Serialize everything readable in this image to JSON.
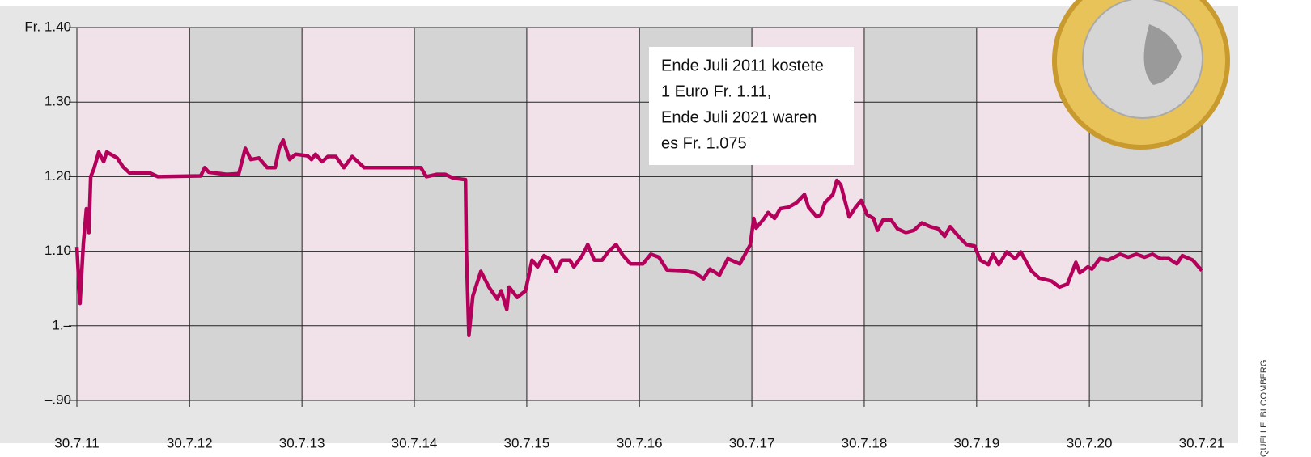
{
  "chart_data": {
    "type": "line",
    "annotation": [
      "Ende Juli 2011 kostete",
      "1 Euro Fr. 1.11,",
      "Ende Juli 2021 waren",
      "es Fr. 1.075"
    ],
    "source": "QUELLE: BLOOMBERG",
    "xlim": [
      "2011-07-30",
      "2021-07-30"
    ],
    "xticks": [
      {
        "value": "2011-07-30",
        "label": "30.7.11"
      },
      {
        "value": "2012-07-30",
        "label": "30.7.12"
      },
      {
        "value": "2013-07-30",
        "label": "30.7.13"
      },
      {
        "value": "2014-07-30",
        "label": "30.7.14"
      },
      {
        "value": "2015-07-30",
        "label": "30.7.15"
      },
      {
        "value": "2016-07-30",
        "label": "30.7.16"
      },
      {
        "value": "2017-07-30",
        "label": "30.7.17"
      },
      {
        "value": "2018-07-30",
        "label": "30.7.18"
      },
      {
        "value": "2019-07-30",
        "label": "30.7.19"
      },
      {
        "value": "2020-07-30",
        "label": "30.7.20"
      },
      {
        "value": "2021-07-30",
        "label": "30.7.21"
      }
    ],
    "ylim": [
      0.9,
      1.4
    ],
    "yticks": [
      {
        "value": 0.9,
        "label": "–.90"
      },
      {
        "value": 1.0,
        "label": "1.–"
      },
      {
        "value": 1.1,
        "label": "1.10"
      },
      {
        "value": 1.2,
        "label": "1.20"
      },
      {
        "value": 1.3,
        "label": "1.30"
      },
      {
        "value": 1.4,
        "label": "Fr. 1.40"
      }
    ],
    "grid": true,
    "band_colors": [
      "#f1e2ea",
      "#d4d4d4"
    ],
    "series": [
      {
        "color": "#b5005b",
        "x": [
          "2011-07-30",
          "2011-08-09",
          "2011-08-20",
          "2011-08-30",
          "2011-09-07",
          "2011-09-13",
          "2011-09-23",
          "2011-10-09",
          "2011-10-25",
          "2011-11-04",
          "2011-12-08",
          "2011-12-27",
          "2012-01-17",
          "2012-03-23",
          "2012-04-18",
          "2012-09-04",
          "2012-09-17",
          "2012-09-30",
          "2012-11-27",
          "2013-01-06",
          "2013-01-27",
          "2013-02-14",
          "2013-03-12",
          "2013-04-08",
          "2013-05-04",
          "2013-05-17",
          "2013-05-30",
          "2013-06-20",
          "2013-07-09",
          "2013-08-17",
          "2013-08-30",
          "2013-09-12",
          "2013-10-03",
          "2013-10-22",
          "2013-11-17",
          "2013-12-13",
          "2014-01-09",
          "2014-02-17",
          "2014-08-20",
          "2014-09-07",
          "2014-10-11",
          "2014-11-07",
          "2014-12-03",
          "2015-01-12",
          "2015-01-15",
          "2015-01-23",
          "2015-02-05",
          "2015-03-03",
          "2015-03-29",
          "2015-04-25",
          "2015-05-08",
          "2015-05-26",
          "2015-06-03",
          "2015-06-29",
          "2015-07-26",
          "2015-08-16",
          "2015-09-03",
          "2015-09-24",
          "2015-10-12",
          "2015-11-02",
          "2015-11-21",
          "2015-12-17",
          "2015-12-30",
          "2016-01-26",
          "2016-02-13",
          "2016-03-05",
          "2016-03-31",
          "2016-04-19",
          "2016-05-15",
          "2016-06-05",
          "2016-07-01",
          "2016-08-10",
          "2016-09-05",
          "2016-10-01",
          "2016-10-27",
          "2016-12-19",
          "2017-01-27",
          "2017-02-23",
          "2017-03-16",
          "2017-04-16",
          "2017-05-13",
          "2017-06-21",
          "2017-07-25",
          "2017-08-05",
          "2017-08-13",
          "2017-09-08",
          "2017-09-21",
          "2017-10-12",
          "2017-10-30",
          "2017-11-26",
          "2017-12-22",
          "2018-01-17",
          "2018-01-30",
          "2018-02-26",
          "2018-03-11",
          "2018-03-24",
          "2018-04-19",
          "2018-05-02",
          "2018-05-15",
          "2018-06-11",
          "2018-07-02",
          "2018-07-20",
          "2018-08-08",
          "2018-08-29",
          "2018-09-11",
          "2018-09-29",
          "2018-10-25",
          "2018-11-15",
          "2018-12-12",
          "2019-01-07",
          "2019-02-02",
          "2019-03-01",
          "2019-03-27",
          "2019-04-17",
          "2019-05-05",
          "2019-06-01",
          "2019-06-27",
          "2019-07-23",
          "2019-08-11",
          "2019-09-06",
          "2019-09-21",
          "2019-10-10",
          "2019-11-05",
          "2019-12-02",
          "2019-12-20",
          "2020-01-23",
          "2020-02-18",
          "2020-03-29",
          "2020-04-24",
          "2020-05-20",
          "2020-06-16",
          "2020-06-29",
          "2020-07-25",
          "2020-08-07",
          "2020-09-02",
          "2020-09-29",
          "2020-11-07",
          "2020-12-03",
          "2020-12-30",
          "2021-01-25",
          "2021-02-20",
          "2021-03-18",
          "2021-04-14",
          "2021-05-10",
          "2021-05-28",
          "2021-07-01",
          "2021-07-30"
        ],
        "values": [
          1.106,
          1.03,
          1.11,
          1.157,
          1.125,
          1.2,
          1.21,
          1.233,
          1.22,
          1.233,
          1.225,
          1.213,
          1.205,
          1.205,
          1.2,
          1.201,
          1.212,
          1.206,
          1.203,
          1.204,
          1.238,
          1.223,
          1.225,
          1.212,
          1.212,
          1.238,
          1.249,
          1.223,
          1.23,
          1.228,
          1.223,
          1.23,
          1.22,
          1.227,
          1.227,
          1.212,
          1.227,
          1.212,
          1.212,
          1.2,
          1.203,
          1.203,
          1.198,
          1.196,
          1.1,
          0.987,
          1.04,
          1.073,
          1.052,
          1.036,
          1.047,
          1.022,
          1.052,
          1.038,
          1.047,
          1.088,
          1.079,
          1.094,
          1.09,
          1.073,
          1.088,
          1.088,
          1.079,
          1.094,
          1.109,
          1.088,
          1.088,
          1.099,
          1.109,
          1.095,
          1.083,
          1.083,
          1.096,
          1.092,
          1.075,
          1.074,
          1.071,
          1.063,
          1.076,
          1.068,
          1.09,
          1.083,
          1.109,
          1.144,
          1.131,
          1.144,
          1.152,
          1.144,
          1.157,
          1.159,
          1.165,
          1.176,
          1.159,
          1.146,
          1.149,
          1.165,
          1.176,
          1.195,
          1.189,
          1.146,
          1.159,
          1.168,
          1.149,
          1.144,
          1.128,
          1.142,
          1.142,
          1.13,
          1.125,
          1.128,
          1.138,
          1.133,
          1.13,
          1.12,
          1.133,
          1.12,
          1.109,
          1.107,
          1.088,
          1.082,
          1.096,
          1.082,
          1.099,
          1.09,
          1.099,
          1.074,
          1.064,
          1.06,
          1.052,
          1.056,
          1.085,
          1.071,
          1.079,
          1.076,
          1.09,
          1.088,
          1.096,
          1.092,
          1.096,
          1.092,
          1.096,
          1.09,
          1.09,
          1.083,
          1.094,
          1.088,
          1.074
        ]
      }
    ]
  }
}
